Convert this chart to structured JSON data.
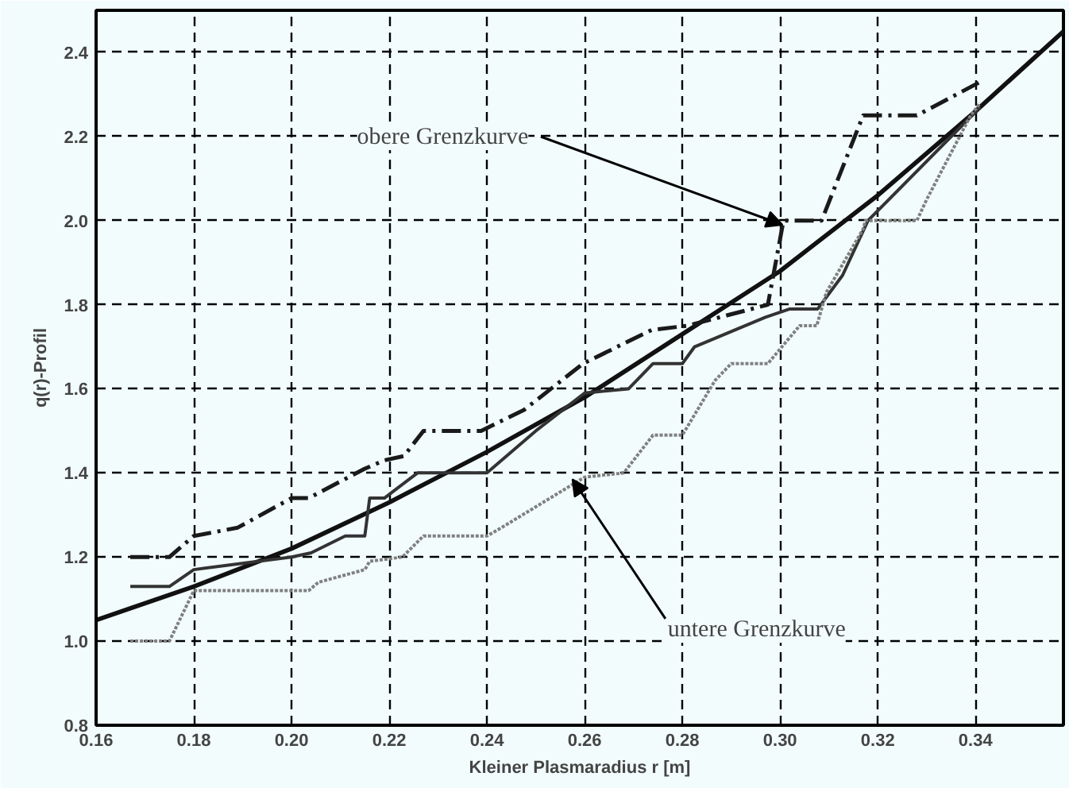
{
  "chart_data": {
    "type": "line",
    "xlabel": "Kleiner Plasmaradius r [m]",
    "ylabel": "q(r)-Profil",
    "xlim": [
      0.16,
      0.358
    ],
    "ylim": [
      0.8,
      2.5
    ],
    "xticks": [
      0.16,
      0.18,
      {
        "value": 0.2,
        "label": "0.20"
      },
      0.22,
      0.24,
      0.26,
      0.28,
      {
        "value": 0.3,
        "label": "0.30"
      },
      0.32,
      0.34
    ],
    "yticks": [
      0.8,
      {
        "value": 1.0,
        "label": "1.0"
      },
      1.2,
      1.4,
      1.6,
      1.8,
      {
        "value": 2.0,
        "label": "2.0"
      },
      2.2,
      2.4
    ],
    "grid": true,
    "marker": "none",
    "series": [
      {
        "color": "#111111",
        "line_style": "solid",
        "x": [
          0.16,
          0.18,
          0.2,
          0.22,
          0.24,
          0.26,
          0.28,
          0.3,
          0.32,
          0.34,
          0.358
        ],
        "values": [
          1.05,
          1.13,
          1.22,
          1.33,
          1.45,
          1.58,
          1.73,
          1.88,
          2.06,
          2.26,
          2.45
        ]
      },
      {
        "color": "#1a1a1a",
        "line_style": "dashed",
        "x": [
          0.167,
          0.175,
          0.18,
          0.189,
          0.2,
          0.2035,
          0.215,
          0.219,
          0.223,
          0.227,
          0.2388,
          0.2476,
          0.2597,
          0.2737,
          0.281,
          0.2975,
          0.3007,
          0.3085,
          0.317,
          0.328,
          0.341
        ],
        "values": [
          1.2,
          1.2,
          1.25,
          1.27,
          1.34,
          1.34,
          1.41,
          1.43,
          1.44,
          1.5,
          1.5,
          1.55,
          1.66,
          1.74,
          1.75,
          1.8,
          2.0,
          2.0,
          2.25,
          2.25,
          2.33
        ]
      },
      {
        "color": "#333333",
        "line_style": "solid",
        "x": [
          0.167,
          0.175,
          0.18,
          0.2,
          0.204,
          0.211,
          0.215,
          0.216,
          0.219,
          0.2258,
          0.24,
          0.25,
          0.26,
          0.269,
          0.274,
          0.28,
          0.2825,
          0.297,
          0.302,
          0.3077,
          0.3128,
          0.318,
          0.341
        ],
        "values": [
          1.13,
          1.13,
          1.17,
          1.2,
          1.21,
          1.25,
          1.25,
          1.34,
          1.34,
          1.4,
          1.4,
          1.5,
          1.59,
          1.6,
          1.66,
          1.66,
          1.7,
          1.77,
          1.79,
          1.79,
          1.87,
          2.0,
          2.27
        ]
      },
      {
        "color": "#808080",
        "line_style": "dotted",
        "x": [
          0.167,
          0.175,
          0.18,
          0.2035,
          0.2055,
          0.215,
          0.216,
          0.2227,
          0.227,
          0.24,
          0.243,
          0.26,
          0.268,
          0.274,
          0.28,
          0.2867,
          0.29,
          0.2975,
          0.304,
          0.3075,
          0.3095,
          0.317,
          0.3175,
          0.328,
          0.33,
          0.339,
          0.341
        ],
        "values": [
          1.0,
          1.0,
          1.12,
          1.12,
          1.14,
          1.17,
          1.19,
          1.2,
          1.25,
          1.25,
          1.27,
          1.39,
          1.4,
          1.49,
          1.49,
          1.62,
          1.66,
          1.66,
          1.75,
          1.75,
          1.83,
          1.98,
          2.0,
          2.0,
          2.05,
          2.25,
          2.28
        ]
      }
    ],
    "annotations": [
      {
        "text": "obere Grenzkurve",
        "x": 0.3005,
        "y": 1.99
      },
      {
        "text": "untere Grenzkurve",
        "x": 0.2575,
        "y": 1.385
      }
    ]
  }
}
